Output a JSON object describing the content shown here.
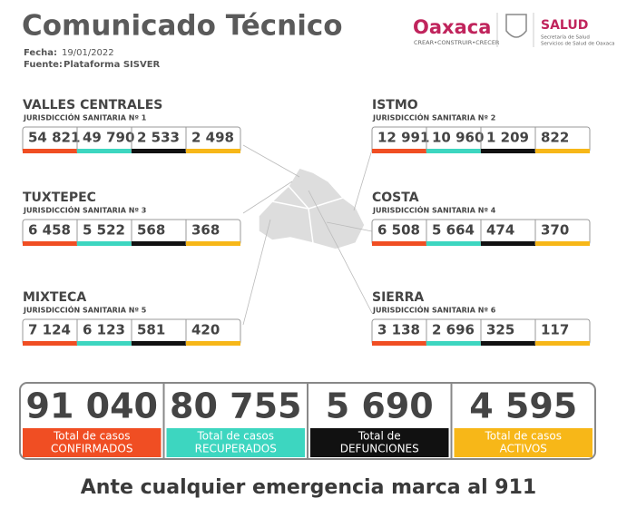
{
  "header": {
    "title": "Comunicado Técnico",
    "date_label": "Fecha:",
    "date": "19/01/2022",
    "source_label": "Fuente:",
    "source": "Plataforma SISVER"
  },
  "logos": {
    "state": "Oaxaca",
    "motto": "CREAR•CONSTRUIR•CRECER",
    "health": "SALUD",
    "health_sub": "Secretaría de Salud",
    "health_sub2": "Servicios de Salud de Oaxaca"
  },
  "regions": [
    {
      "name": "VALLES CENTRALES",
      "jurisdiction": "JURISDICCIÓN SANITARIA Nº 1",
      "values": [
        "54 821",
        "49 790",
        "2 533",
        "2 498"
      ]
    },
    {
      "name": "ISTMO",
      "jurisdiction": "JURISDICCIÓN SANITARIA Nº 2",
      "values": [
        "12 991",
        "10 960",
        "1 209",
        "822"
      ]
    },
    {
      "name": "TUXTEPEC",
      "jurisdiction": "JURISDICCIÓN SANITARIA Nº 3",
      "values": [
        "6 458",
        "5 522",
        "568",
        "368"
      ]
    },
    {
      "name": "COSTA",
      "jurisdiction": "JURISDICCIÓN SANITARIA Nº 4",
      "values": [
        "6 508",
        "5 664",
        "474",
        "370"
      ]
    },
    {
      "name": "MIXTECA",
      "jurisdiction": "JURISDICCIÓN SANITARIA Nº 5",
      "values": [
        "7 124",
        "6 123",
        "581",
        "420"
      ]
    },
    {
      "name": "SIERRA",
      "jurisdiction": "JURISDICCIÓN SANITARIA Nº 6",
      "values": [
        "3 138",
        "2 696",
        "325",
        "117"
      ]
    }
  ],
  "totals": [
    {
      "value": "91 040",
      "label_line1": "Total de casos",
      "label_line2": "CONFIRMADOS"
    },
    {
      "value": "80 755",
      "label_line1": "Total de casos",
      "label_line2": "RECUPERADOS"
    },
    {
      "value": "5 690",
      "label_line1": "Total de",
      "label_line2": "DEFUNCIONES"
    },
    {
      "value": "4 595",
      "label_line1": "Total de casos",
      "label_line2": "ACTIVOS"
    }
  ],
  "footer": "Ante cualquier emergencia marca al 911"
}
